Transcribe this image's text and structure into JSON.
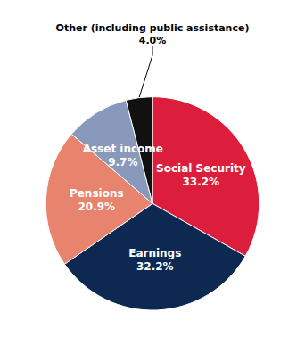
{
  "chart_data": {
    "type": "pie",
    "categories": [
      "Social Security",
      "Earnings",
      "Pensions",
      "Asset income",
      "Other"
    ],
    "values": [
      33.2,
      32.2,
      20.9,
      9.7,
      4.0
    ],
    "colors": [
      "#DC1E3C",
      "#0D2952",
      "#E8836E",
      "#8899BB",
      "#111111"
    ],
    "data_labels": true,
    "value_labels": [
      "33.2%",
      "32.2%",
      "20.9%",
      "9.7%",
      null
    ],
    "annotations": [
      {
        "text": "Other (including public assistance)\n4.0%",
        "category": "Other"
      }
    ]
  }
}
